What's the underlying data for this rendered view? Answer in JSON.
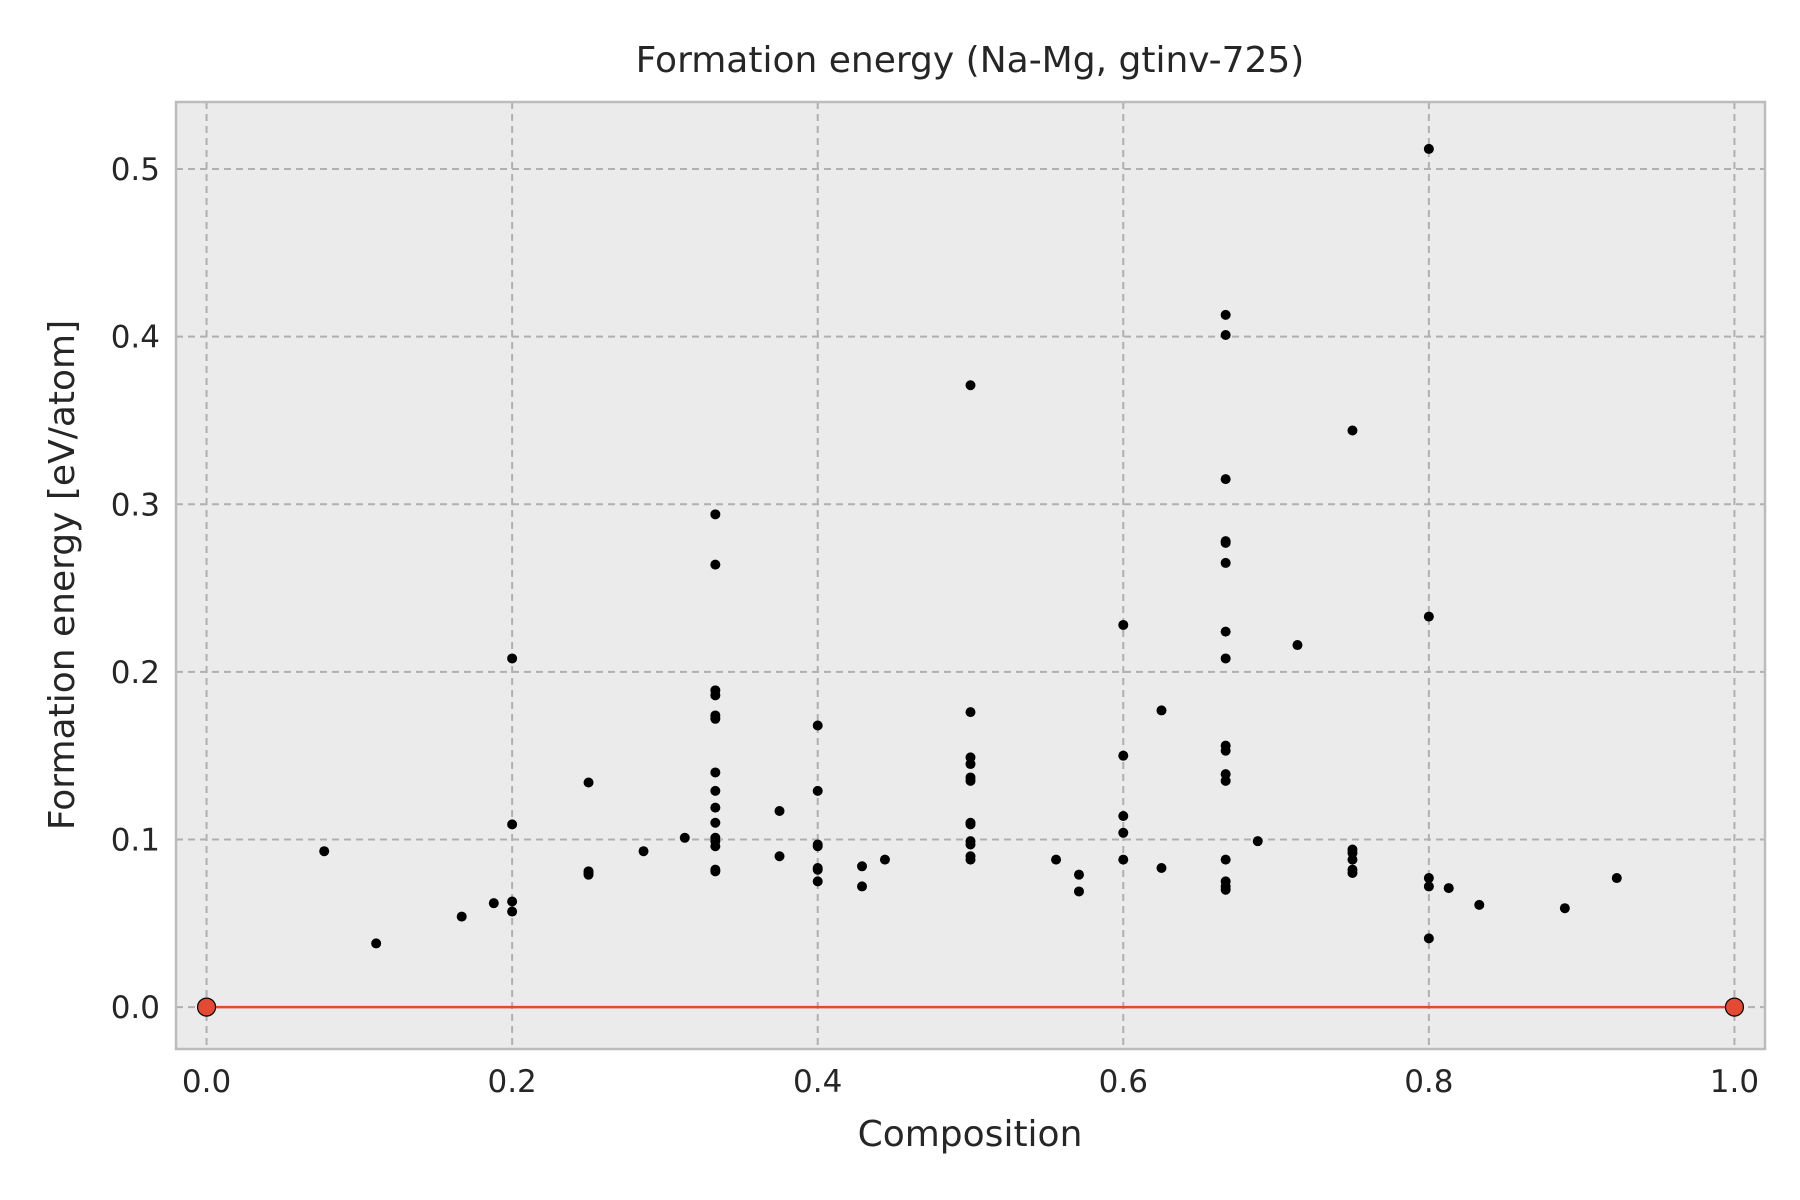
{
  "chart_data": {
    "type": "scatter",
    "title": "Formation energy (Na-Mg, gtinv-725)",
    "xlabel": "Composition",
    "ylabel": "Formation energy [eV/atom]",
    "xlim": [
      -0.02,
      1.02
    ],
    "ylim": [
      -0.025,
      0.54
    ],
    "xticks": [
      0.0,
      0.2,
      0.4,
      0.6,
      0.8,
      1.0
    ],
    "xtick_labels": [
      "0.0",
      "0.2",
      "0.4",
      "0.6",
      "0.8",
      "1.0"
    ],
    "yticks": [
      0.0,
      0.1,
      0.2,
      0.3,
      0.4,
      0.5
    ],
    "ytick_labels": [
      "0.0",
      "0.1",
      "0.2",
      "0.3",
      "0.4",
      "0.5"
    ],
    "grid": true,
    "legend": false,
    "colors": {
      "background": "#ebebeb",
      "grid": "#b0b0b0",
      "points": "#000000",
      "hull": "#e24a33",
      "frame": "#bcbcbc"
    },
    "series": [
      {
        "kind": "points",
        "points": [
          [
            0.077,
            0.093
          ],
          [
            0.111,
            0.038
          ],
          [
            0.167,
            0.054
          ],
          [
            0.188,
            0.062
          ],
          [
            0.2,
            0.208
          ],
          [
            0.2,
            0.109
          ],
          [
            0.2,
            0.063
          ],
          [
            0.2,
            0.057
          ],
          [
            0.25,
            0.134
          ],
          [
            0.25,
            0.081
          ],
          [
            0.25,
            0.08
          ],
          [
            0.25,
            0.079
          ],
          [
            0.286,
            0.093
          ],
          [
            0.313,
            0.101
          ],
          [
            0.333,
            0.294
          ],
          [
            0.333,
            0.264
          ],
          [
            0.333,
            0.189
          ],
          [
            0.333,
            0.186
          ],
          [
            0.333,
            0.174
          ],
          [
            0.333,
            0.172
          ],
          [
            0.333,
            0.14
          ],
          [
            0.333,
            0.129
          ],
          [
            0.333,
            0.119
          ],
          [
            0.333,
            0.11
          ],
          [
            0.333,
            0.101
          ],
          [
            0.333,
            0.099
          ],
          [
            0.333,
            0.096
          ],
          [
            0.333,
            0.082
          ],
          [
            0.333,
            0.081
          ],
          [
            0.375,
            0.117
          ],
          [
            0.375,
            0.09
          ],
          [
            0.4,
            0.168
          ],
          [
            0.4,
            0.129
          ],
          [
            0.4,
            0.097
          ],
          [
            0.4,
            0.096
          ],
          [
            0.4,
            0.083
          ],
          [
            0.4,
            0.082
          ],
          [
            0.4,
            0.075
          ],
          [
            0.429,
            0.084
          ],
          [
            0.429,
            0.072
          ],
          [
            0.444,
            0.088
          ],
          [
            0.5,
            0.371
          ],
          [
            0.5,
            0.176
          ],
          [
            0.5,
            0.149
          ],
          [
            0.5,
            0.145
          ],
          [
            0.5,
            0.137
          ],
          [
            0.5,
            0.135
          ],
          [
            0.5,
            0.11
          ],
          [
            0.5,
            0.109
          ],
          [
            0.5,
            0.099
          ],
          [
            0.5,
            0.097
          ],
          [
            0.5,
            0.09
          ],
          [
            0.5,
            0.088
          ],
          [
            0.556,
            0.088
          ],
          [
            0.571,
            0.079
          ],
          [
            0.571,
            0.069
          ],
          [
            0.6,
            0.228
          ],
          [
            0.6,
            0.15
          ],
          [
            0.6,
            0.114
          ],
          [
            0.6,
            0.104
          ],
          [
            0.6,
            0.088
          ],
          [
            0.625,
            0.177
          ],
          [
            0.625,
            0.083
          ],
          [
            0.667,
            0.413
          ],
          [
            0.667,
            0.401
          ],
          [
            0.667,
            0.315
          ],
          [
            0.667,
            0.278
          ],
          [
            0.667,
            0.277
          ],
          [
            0.667,
            0.265
          ],
          [
            0.667,
            0.224
          ],
          [
            0.667,
            0.208
          ],
          [
            0.667,
            0.156
          ],
          [
            0.667,
            0.153
          ],
          [
            0.667,
            0.139
          ],
          [
            0.667,
            0.135
          ],
          [
            0.667,
            0.088
          ],
          [
            0.667,
            0.075
          ],
          [
            0.667,
            0.072
          ],
          [
            0.667,
            0.07
          ],
          [
            0.688,
            0.099
          ],
          [
            0.714,
            0.216
          ],
          [
            0.75,
            0.344
          ],
          [
            0.75,
            0.094
          ],
          [
            0.75,
            0.092
          ],
          [
            0.75,
            0.088
          ],
          [
            0.75,
            0.082
          ],
          [
            0.75,
            0.08
          ],
          [
            0.8,
            0.512
          ],
          [
            0.8,
            0.233
          ],
          [
            0.8,
            0.077
          ],
          [
            0.8,
            0.072
          ],
          [
            0.8,
            0.041
          ],
          [
            0.813,
            0.071
          ],
          [
            0.833,
            0.061
          ],
          [
            0.889,
            0.059
          ],
          [
            0.923,
            0.077
          ]
        ]
      },
      {
        "kind": "hull",
        "points": [
          [
            0.0,
            0.0
          ],
          [
            1.0,
            0.0
          ]
        ]
      }
    ]
  }
}
